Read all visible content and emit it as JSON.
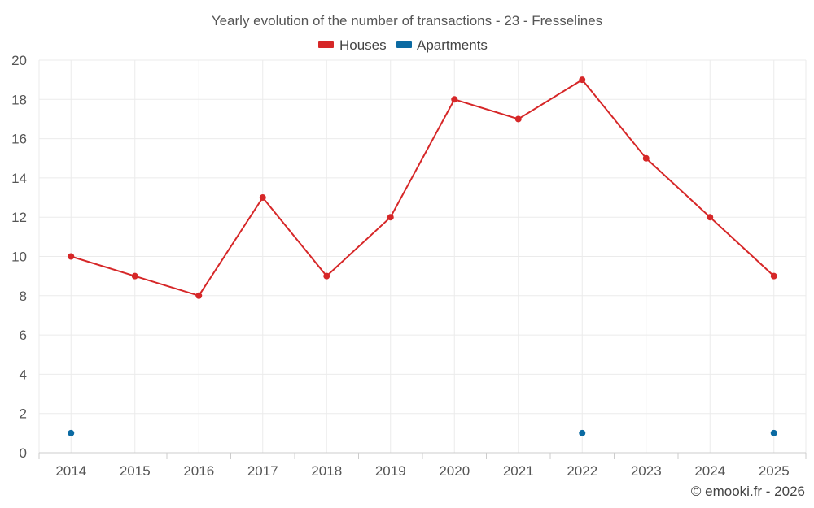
{
  "chart_data": {
    "type": "line",
    "title": "Yearly evolution of the number of transactions - 23 - Fresselines",
    "categories": [
      "2014",
      "2015",
      "2016",
      "2017",
      "2018",
      "2019",
      "2020",
      "2021",
      "2022",
      "2023",
      "2024",
      "2025"
    ],
    "ylim": [
      0,
      20
    ],
    "yticks": [
      0,
      2,
      4,
      6,
      8,
      10,
      12,
      14,
      16,
      18,
      20
    ],
    "grid": true,
    "legend_position": "top-center",
    "series": [
      {
        "name": "Houses",
        "color": "#d62728",
        "values": [
          10,
          9,
          8,
          13,
          9,
          12,
          18,
          17,
          19,
          15,
          12,
          9
        ],
        "line": true
      },
      {
        "name": "Apartments",
        "color": "#0b6aa2",
        "values": [
          1,
          null,
          null,
          null,
          null,
          null,
          null,
          null,
          1,
          null,
          null,
          1
        ],
        "line": false
      }
    ],
    "credit": "© emooki.fr - 2026"
  }
}
